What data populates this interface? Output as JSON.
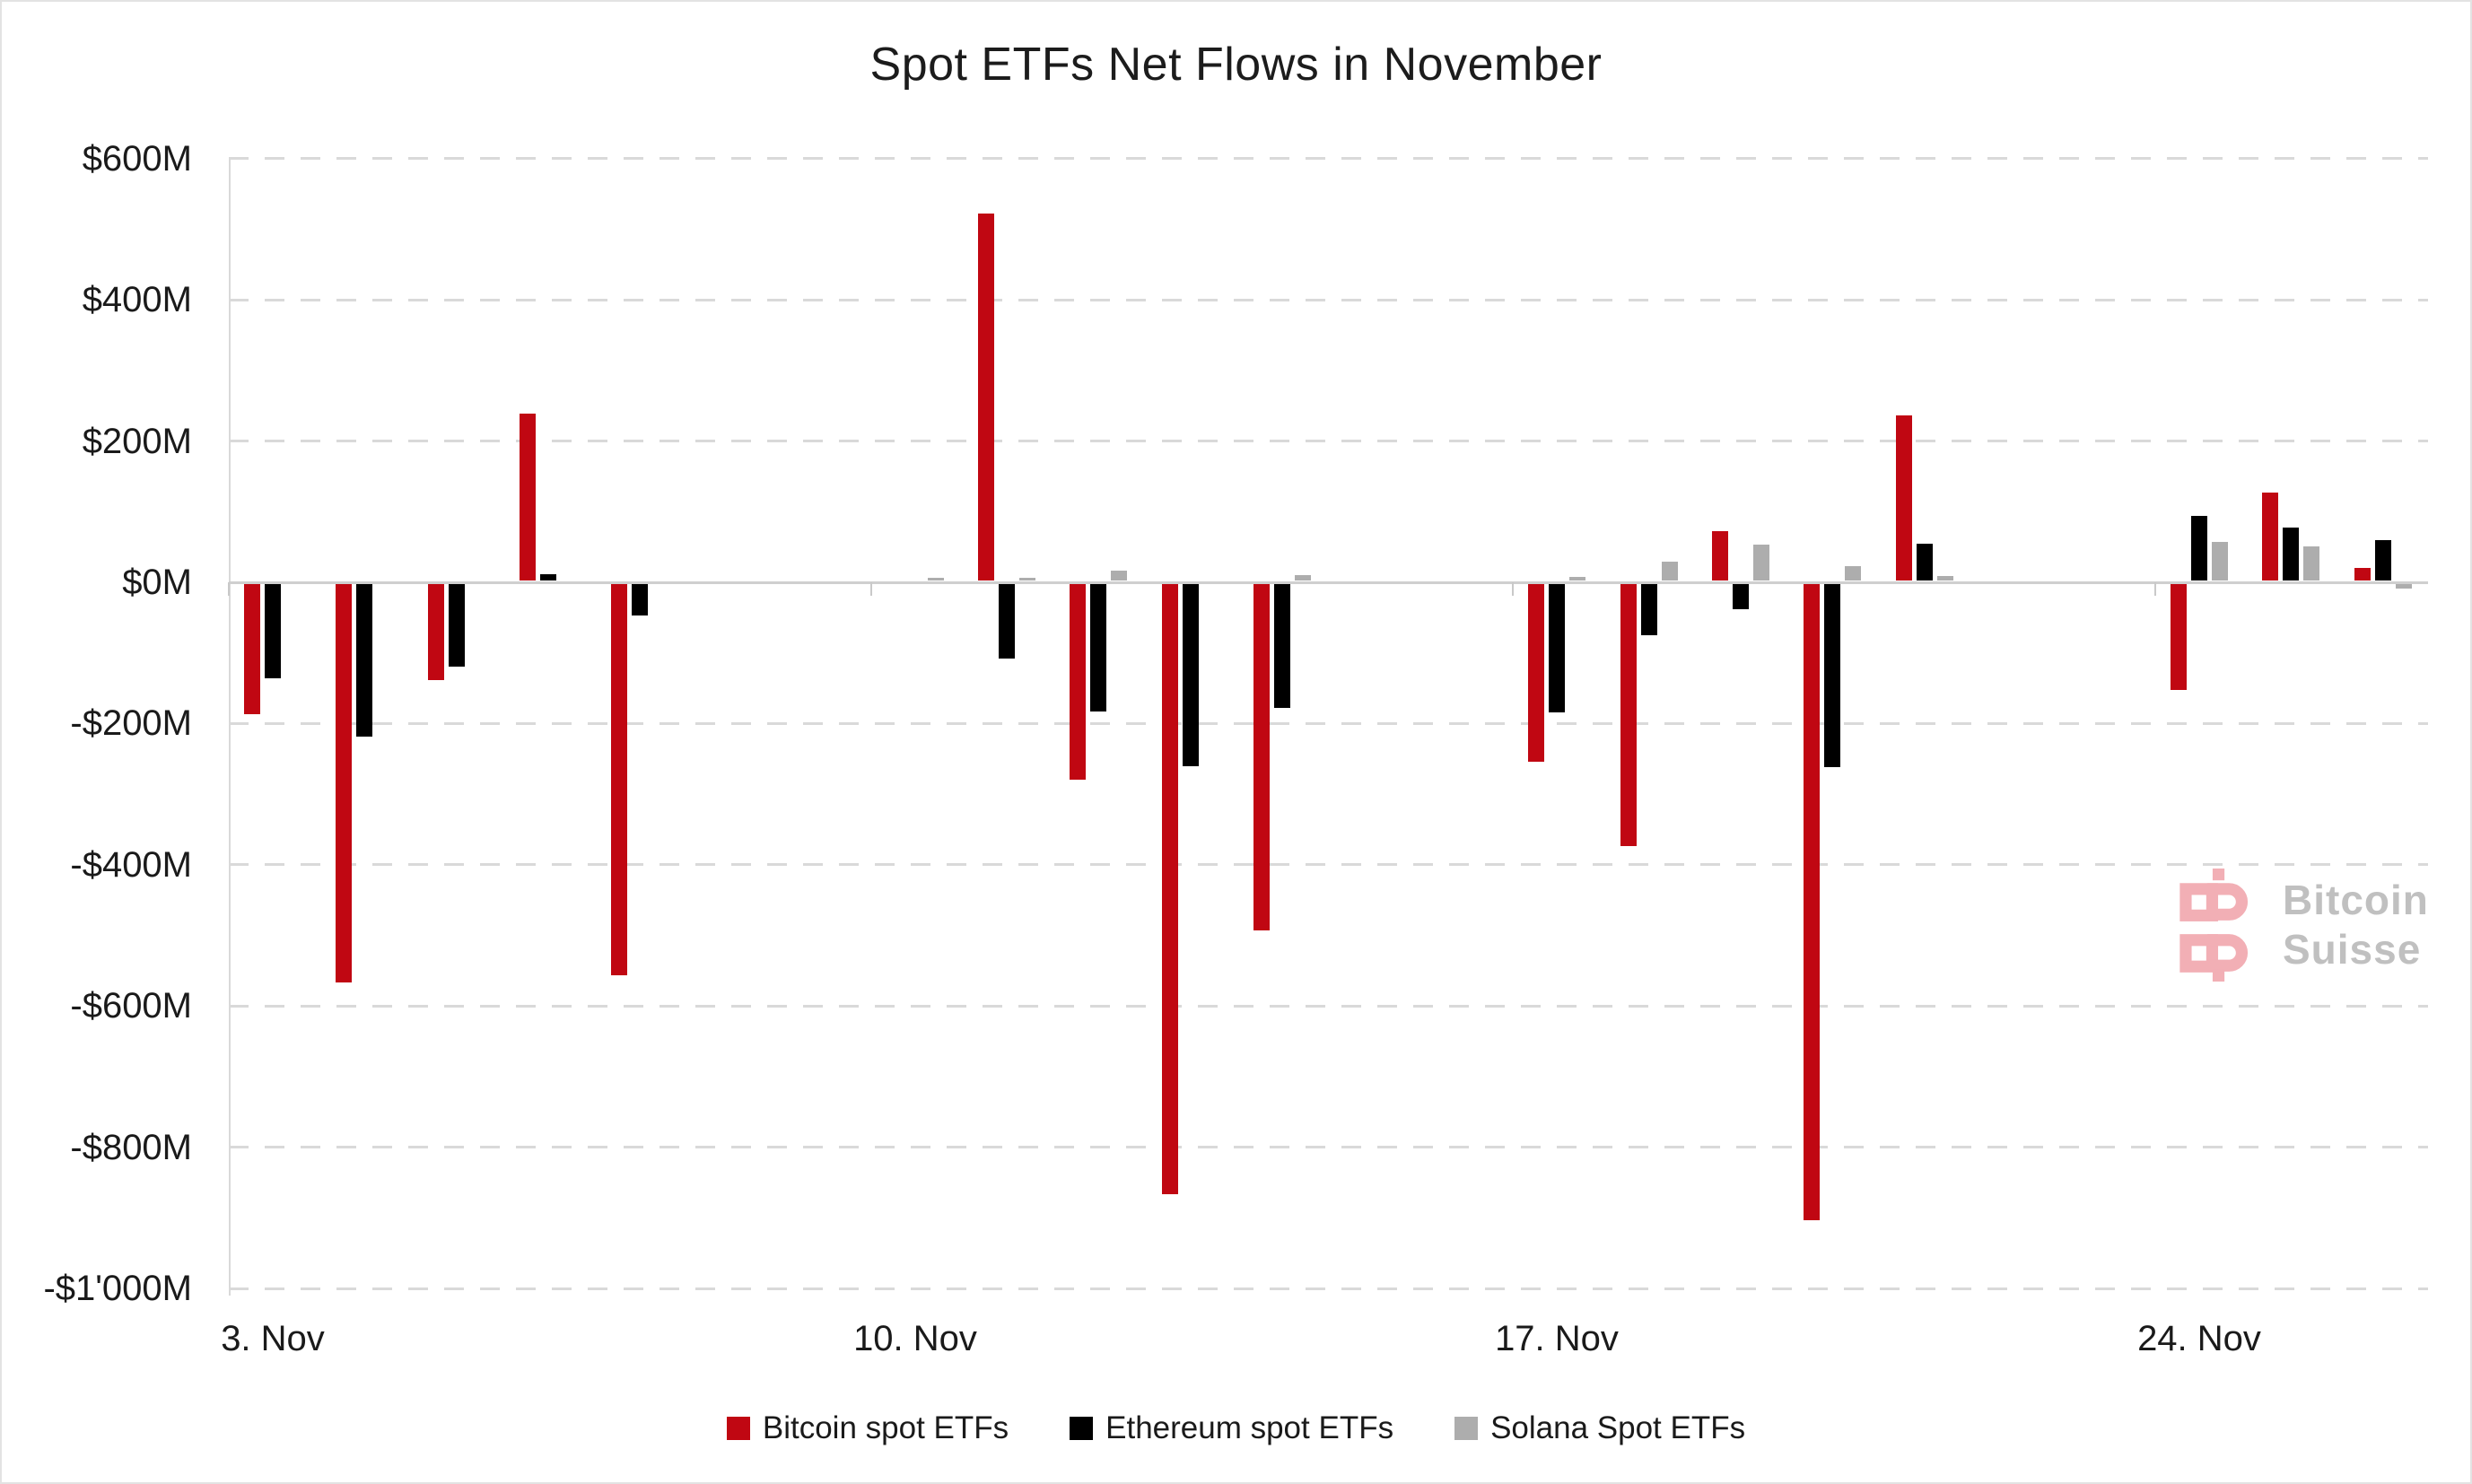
{
  "title": "Spot ETFs Net Flows in November",
  "colors": {
    "bitcoin": "#c00712",
    "ethereum": "#000000",
    "solana": "#adadad",
    "gridline": "#d9d9d9",
    "zero_line": "#cfcfcf",
    "axis_text": "#1a1a1a",
    "watermark_pink": "#f2afb5",
    "watermark_gray": "#c0c0c0"
  },
  "y_axis": {
    "tick_labels": [
      "$600M",
      "$400M",
      "$200M",
      "$0M",
      "-$200M",
      "-$400M",
      "-$600M",
      "-$800M",
      "-$1'000M"
    ],
    "tick_values": [
      600,
      400,
      200,
      0,
      -200,
      -400,
      -600,
      -800,
      -1000
    ]
  },
  "x_axis": {
    "tick_labels": [
      "3. Nov",
      "10. Nov",
      "17. Nov",
      "24. Nov"
    ]
  },
  "legend": {
    "items": [
      {
        "label": "Bitcoin spot ETFs",
        "series": "bitcoin"
      },
      {
        "label": "Ethereum spot ETFs",
        "series": "ethereum"
      },
      {
        "label": "Solana Spot ETFs",
        "series": "solana"
      }
    ]
  },
  "watermark": {
    "line1": "Bitcoin",
    "line2": "Suisse"
  },
  "chart_data": {
    "type": "bar",
    "title": "Spot ETFs Net Flows in November",
    "unit": "USD millions",
    "ylim": [
      -1000,
      600
    ],
    "grid": "horizontal dashed",
    "legend_position": "bottom",
    "categories": [
      "3. Nov",
      "4. Nov",
      "5. Nov",
      "6. Nov",
      "7. Nov",
      "10. Nov",
      "11. Nov",
      "12. Nov",
      "13. Nov",
      "14. Nov",
      "17. Nov",
      "18. Nov",
      "19. Nov",
      "20. Nov",
      "21. Nov",
      "24. Nov",
      "25. Nov",
      "26. Nov"
    ],
    "series": [
      {
        "name": "Bitcoin spot ETFs",
        "key": "bitcoin",
        "color": "#c00712",
        "values": [
          -187,
          -566,
          -139,
          239,
          -557,
          0,
          522,
          -279,
          -866,
          -493,
          -254,
          -373,
          72,
          -903,
          236,
          -152,
          127,
          20
        ]
      },
      {
        "name": "Ethereum spot ETFs",
        "key": "ethereum",
        "color": "#000000",
        "values": [
          -136,
          -218,
          -119,
          11,
          -47,
          0,
          -108,
          -183,
          -260,
          -178,
          -184,
          -75,
          -38,
          -262,
          54,
          94,
          77,
          60
        ]
      },
      {
        "name": "Solana Spot ETFs",
        "key": "solana",
        "color": "#adadad",
        "values": [
          0,
          0,
          0,
          0,
          0,
          6,
          6,
          16,
          0,
          10,
          7,
          29,
          53,
          23,
          9,
          57,
          51,
          -9
        ]
      }
    ]
  }
}
